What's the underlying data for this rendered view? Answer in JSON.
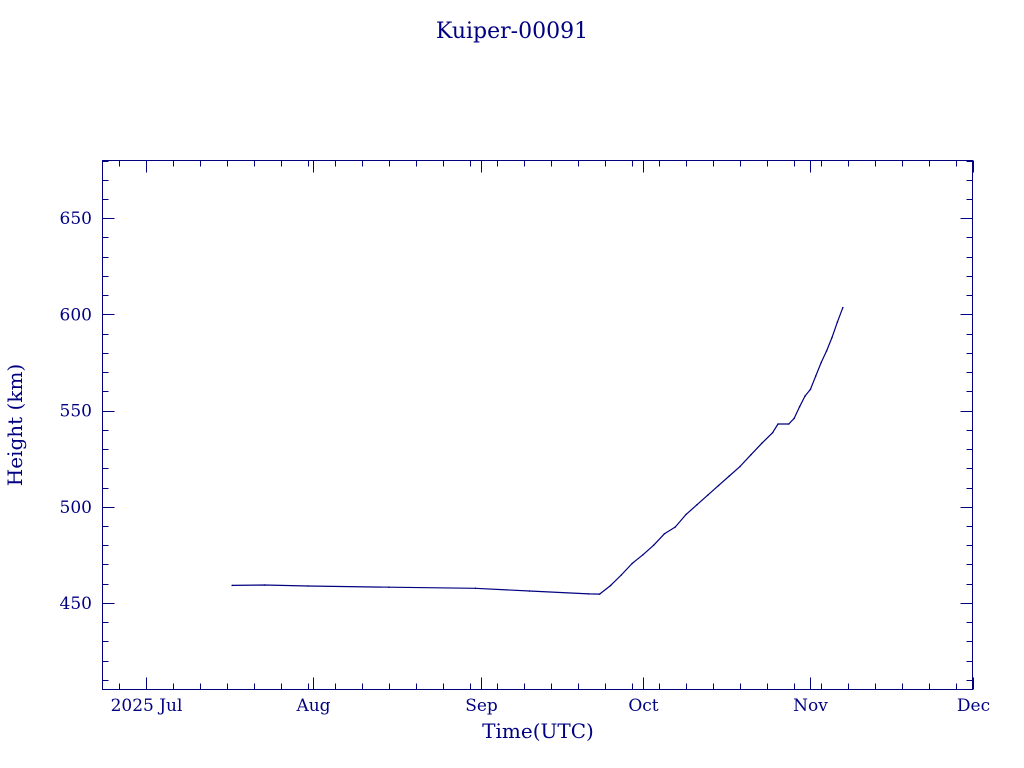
{
  "chart_data": {
    "type": "line",
    "title": "Kuiper-00091",
    "xlabel": "Time(UTC)",
    "ylabel": "Height (km)",
    "x_tick_labels": [
      "2025 Jul",
      "Aug",
      "Sep",
      "Oct",
      "Nov",
      "Dec"
    ],
    "x_tick_dates": [
      "2025-07-01",
      "2025-08-01",
      "2025-09-01",
      "2025-10-01",
      "2025-11-01",
      "2025-12-01"
    ],
    "xlim": [
      "2025-06-23",
      "2025-12-01"
    ],
    "y_tick_labels": [
      "450",
      "500",
      "550",
      "600",
      "650"
    ],
    "y_ticks": [
      450,
      500,
      550,
      600,
      650
    ],
    "ylim": [
      405,
      680
    ],
    "grid": false,
    "color": "#000080",
    "series": [
      {
        "points": [
          [
            "2025-07-17",
            459.1
          ],
          [
            "2025-07-23",
            459.3
          ],
          [
            "2025-07-31",
            458.8
          ],
          [
            "2025-08-15",
            458.2
          ],
          [
            "2025-08-31",
            457.6
          ],
          [
            "2025-09-10",
            456.2
          ],
          [
            "2025-09-21",
            454.7
          ],
          [
            "2025-09-23",
            454.6
          ],
          [
            "2025-09-25",
            459.0
          ],
          [
            "2025-09-27",
            464.5
          ],
          [
            "2025-09-29",
            470.5
          ],
          [
            "2025-10-01",
            475.0
          ],
          [
            "2025-10-03",
            480.0
          ],
          [
            "2025-10-05",
            486.0
          ],
          [
            "2025-10-07",
            489.5
          ],
          [
            "2025-10-09",
            496.0
          ],
          [
            "2025-10-11",
            501.0
          ],
          [
            "2025-10-13",
            506.0
          ],
          [
            "2025-10-15",
            511.0
          ],
          [
            "2025-10-17",
            516.0
          ],
          [
            "2025-10-19",
            521.0
          ],
          [
            "2025-10-21",
            527.0
          ],
          [
            "2025-10-23",
            533.0
          ],
          [
            "2025-10-25",
            538.5
          ],
          [
            "2025-10-26",
            543.0
          ],
          [
            "2025-10-28",
            543.0
          ],
          [
            "2025-10-29",
            546.0
          ],
          [
            "2025-10-30",
            552.0
          ],
          [
            "2025-10-31",
            557.5
          ],
          [
            "2025-11-01",
            561.0
          ],
          [
            "2025-11-02",
            568.0
          ],
          [
            "2025-11-03",
            575.0
          ],
          [
            "2025-11-04",
            581.0
          ],
          [
            "2025-11-05",
            588.0
          ],
          [
            "2025-11-06",
            596.0
          ],
          [
            "2025-11-07",
            603.5
          ]
        ]
      }
    ]
  }
}
